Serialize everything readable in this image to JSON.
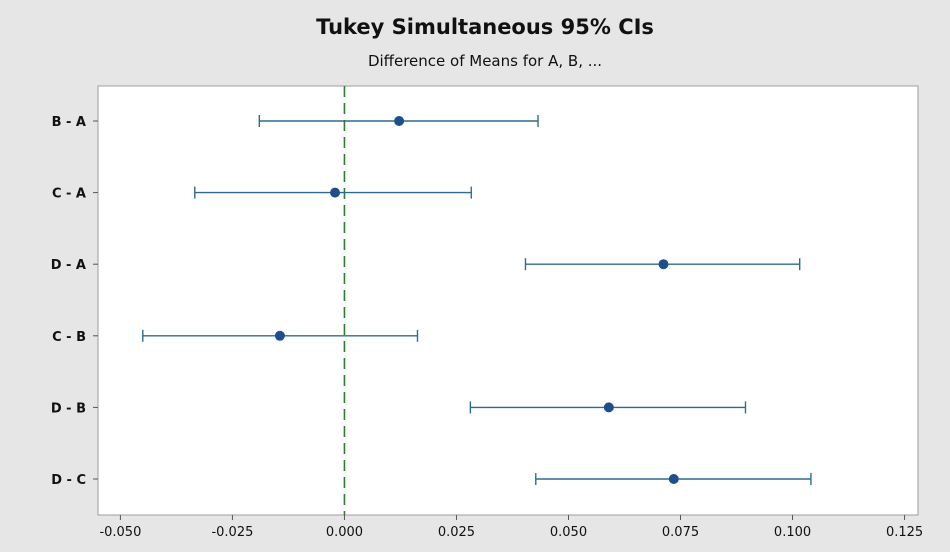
{
  "chart_data": {
    "type": "interval",
    "title": "Tukey Simultaneous 95% CIs",
    "subtitle": "Difference of Means for A, B, ...",
    "xlabel": "",
    "ylabel": "",
    "xlim": [
      -0.055,
      0.128
    ],
    "xticks": [
      -0.05,
      -0.025,
      0.0,
      0.025,
      0.05,
      0.075,
      0.1,
      0.125
    ],
    "xtick_labels": [
      "-0.050",
      "-0.025",
      "0.000",
      "0.025",
      "0.050",
      "0.075",
      "0.100",
      "0.125"
    ],
    "reference_line": 0,
    "grid": false,
    "categories": [
      "B - A",
      "C - A",
      "D - A",
      "C - B",
      "D - B",
      "D - C"
    ],
    "estimates": [
      0.0122,
      -0.0021,
      0.0712,
      -0.0144,
      0.059,
      0.0735
    ],
    "lower": [
      -0.019,
      -0.0334,
      0.0404,
      -0.045,
      0.0281,
      0.0427
    ],
    "upper": [
      0.0432,
      0.0283,
      0.1016,
      0.0163,
      0.0895,
      0.1041
    ],
    "colors": {
      "interval": "#2e6b8e",
      "point": "#1f4e8c",
      "reference": "#2e7d32",
      "plot_bg": "#ffffff",
      "panel_bg": "#e6e6e6"
    }
  }
}
